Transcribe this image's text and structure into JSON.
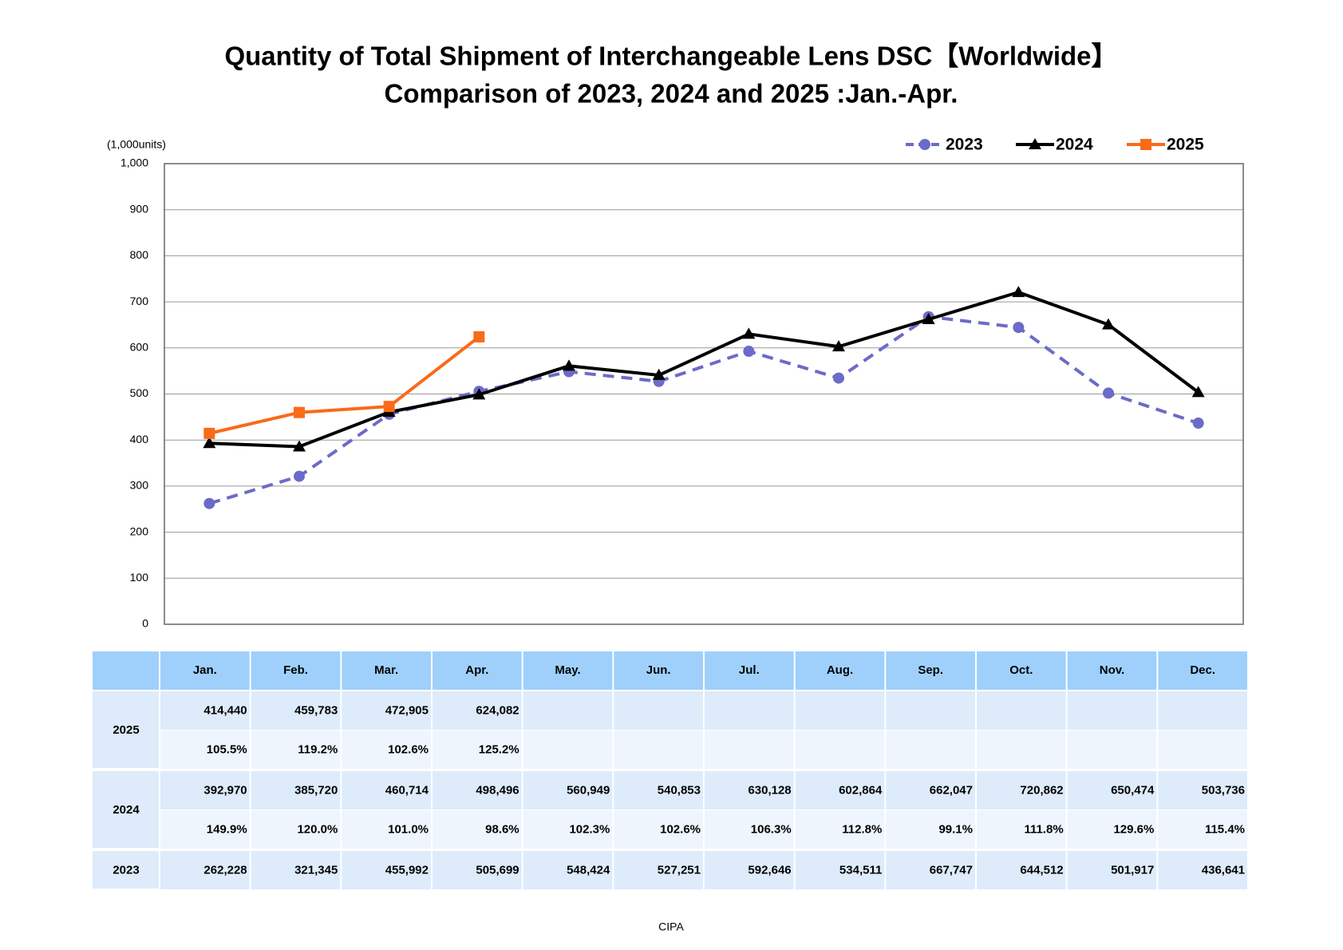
{
  "chart_data": {
    "type": "line",
    "title": "Quantity of Total Shipment of Interchangeable Lens DSC【Worldwide】",
    "subtitle": "Comparison of 2023, 2024 and 2025 :Jan.-Apr.",
    "y_axis_label": "(1,000units)",
    "categories": [
      "Jan.",
      "Feb.",
      "Mar.",
      "Apr.",
      "May.",
      "Jun.",
      "Jul.",
      "Aug.",
      "Sep.",
      "Oct.",
      "Nov.",
      "Dec."
    ],
    "ylim": [
      0,
      1000
    ],
    "yticks": [
      0,
      100,
      200,
      300,
      400,
      500,
      600,
      700,
      800,
      900,
      {
        "value": 1000,
        "label": "1,000"
      }
    ],
    "grid": true,
    "legend": "top-right",
    "series": [
      {
        "name": "2023",
        "color": "#6b6bc8",
        "dash": true,
        "marker": "circle",
        "values": [
          262.228,
          321.345,
          455.992,
          505.699,
          548.424,
          527.251,
          592.646,
          534.511,
          667.747,
          644.512,
          501.917,
          436.641
        ],
        "value_labels": [
          "262,228",
          "321,345",
          "455,992",
          "505,699",
          "548,424",
          "527,251",
          "592,646",
          "534,511",
          "667,747",
          "644,512",
          "501,917",
          "436,641"
        ]
      },
      {
        "name": "2024",
        "color": "#000000",
        "dash": false,
        "marker": "triangle",
        "values": [
          392.97,
          385.72,
          460.714,
          498.496,
          560.949,
          540.853,
          630.128,
          602.864,
          662.047,
          720.862,
          650.474,
          503.736
        ],
        "value_labels": [
          "392,970",
          "385,720",
          "460,714",
          "498,496",
          "560,949",
          "540,853",
          "630,128",
          "602,864",
          "662,047",
          "720,862",
          "650,474",
          "503,736"
        ]
      },
      {
        "name": "2025",
        "color": "#f96a1a",
        "dash": false,
        "marker": "square",
        "values": [
          414.44,
          459.783,
          472.905,
          624.082,
          null,
          null,
          null,
          null,
          null,
          null,
          null,
          null
        ],
        "value_labels": [
          "414,440",
          "459,783",
          "472,905",
          "624,082",
          null,
          null,
          null,
          null,
          null,
          null,
          null,
          null
        ]
      }
    ]
  },
  "table": {
    "yoy_2025": [
      "105.5%",
      "119.2%",
      "102.6%",
      "125.2%",
      null,
      null,
      null,
      null,
      null,
      null,
      null,
      null
    ],
    "yoy_2024": [
      "149.9%",
      "120.0%",
      "101.0%",
      "98.6%",
      "102.3%",
      "102.6%",
      "106.3%",
      "112.8%",
      "99.1%",
      "111.8%",
      "129.6%",
      "115.4%"
    ]
  },
  "footer": "CIPA"
}
